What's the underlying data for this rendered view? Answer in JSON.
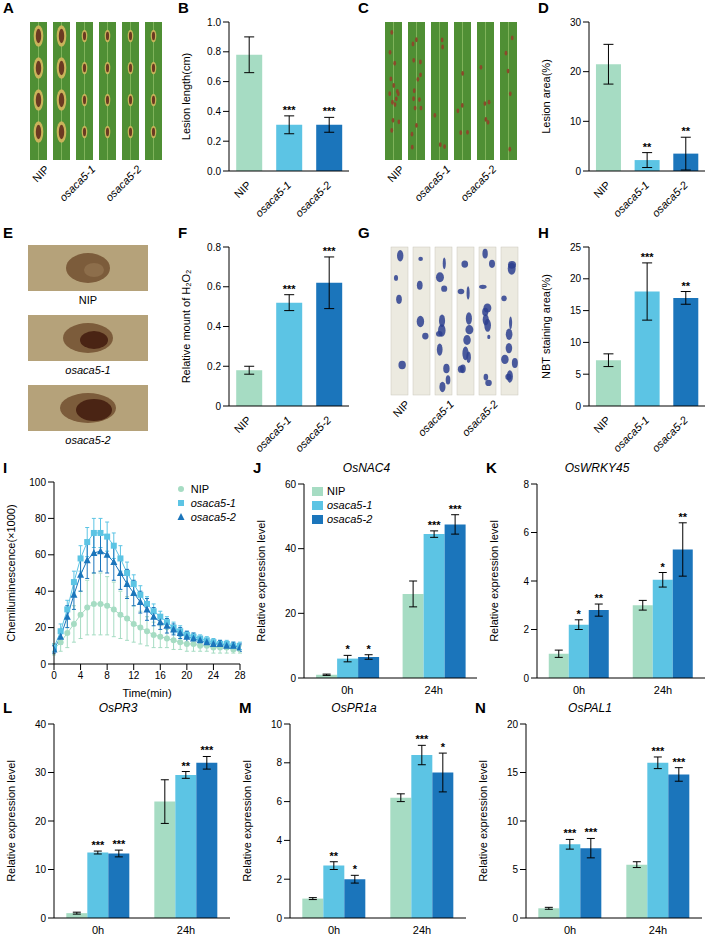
{
  "chart_data": [
    {
      "panel": "B",
      "type": "bar",
      "categories": [
        "NIP",
        "osaca5-1",
        "osaca5-2"
      ],
      "values": [
        0.78,
        0.31,
        0.31
      ],
      "errors": [
        0.12,
        0.06,
        0.05
      ],
      "annotations": [
        null,
        "***",
        "***"
      ],
      "colors": [
        "#a6dcc3",
        "#5cc4e4",
        "#1b75bb"
      ],
      "ylabel": "Lesion length(cm)",
      "ylim": [
        0,
        1
      ],
      "yticks": [
        {
          "value": 0,
          "label": "0.0"
        },
        0.2,
        0.4,
        0.6,
        0.8,
        {
          "value": 1,
          "label": "1.0"
        }
      ]
    },
    {
      "panel": "D",
      "type": "bar",
      "categories": [
        "NIP",
        "osaca5-1",
        "osaca5-2"
      ],
      "values": [
        21.5,
        2.2,
        3.5
      ],
      "errors": [
        4,
        1.5,
        3.3
      ],
      "annotations": [
        null,
        "**",
        "**"
      ],
      "colors": [
        "#a6dcc3",
        "#5cc4e4",
        "#1b75bb"
      ],
      "ylabel": "Lesion area(%)",
      "ylim": [
        0,
        30
      ],
      "yticks": [
        0,
        10,
        20,
        30
      ]
    },
    {
      "panel": "F",
      "type": "bar",
      "categories": [
        "NIP",
        "osaca5-1",
        "osaca5-2"
      ],
      "values": [
        0.18,
        0.52,
        0.62
      ],
      "errors": [
        0.02,
        0.04,
        0.13
      ],
      "annotations": [
        null,
        "***",
        "***"
      ],
      "colors": [
        "#a6dcc3",
        "#5cc4e4",
        "#1b75bb"
      ],
      "ylabel": "Relative mount of H₂O₂",
      "ylim": [
        0,
        0.8
      ],
      "yticks": [
        0,
        0.2,
        0.4,
        0.6,
        0.8
      ]
    },
    {
      "panel": "H",
      "type": "bar",
      "categories": [
        "NIP",
        "osaca5-1",
        "osaca5-2"
      ],
      "values": [
        7.2,
        18,
        17
      ],
      "errors": [
        1,
        4.5,
        1
      ],
      "annotations": [
        null,
        "***",
        "**"
      ],
      "colors": [
        "#a6dcc3",
        "#5cc4e4",
        "#1b75bb"
      ],
      "ylabel": "NBT staining area(%)",
      "ylim": [
        0,
        25
      ],
      "yticks": [
        0,
        5,
        10,
        15,
        20,
        25
      ]
    },
    {
      "panel": "I",
      "type": "line",
      "xlabel": "Time(min)",
      "ylabel": "Chemiluminescence(×1000)",
      "legend": "top-right",
      "xlim": [
        0,
        28
      ],
      "xticks": [
        0,
        4,
        8,
        12,
        16,
        20,
        24,
        28
      ],
      "ylim": [
        0,
        100
      ],
      "yticks": [
        0,
        20,
        40,
        60,
        80,
        100
      ],
      "x": [
        0,
        1,
        2,
        3,
        4,
        5,
        6,
        7,
        8,
        9,
        10,
        11,
        12,
        13,
        14,
        15,
        16,
        17,
        18,
        19,
        20,
        21,
        22,
        23,
        24,
        25,
        26,
        27,
        28
      ],
      "series": [
        {
          "name": "NIP",
          "color": "#a6dcc3",
          "marker": "circle",
          "values": [
            8,
            12,
            17,
            22,
            27,
            31,
            33,
            33,
            32,
            30,
            27,
            25,
            22,
            20,
            18,
            16,
            15,
            14,
            13,
            12,
            11,
            11,
            10,
            10,
            9,
            9,
            9,
            8,
            8
          ],
          "errors": [
            3,
            5,
            8,
            10,
            13,
            15,
            17,
            17,
            16,
            15,
            13,
            12,
            10,
            9,
            8,
            7,
            6,
            5,
            5,
            4,
            4,
            4,
            3,
            3,
            3,
            3,
            3,
            2,
            2
          ]
        },
        {
          "name": "osaca5-1",
          "color": "#5cc4e4",
          "marker": "square",
          "values": [
            9,
            18,
            30,
            45,
            58,
            67,
            72,
            72,
            70,
            65,
            58,
            50,
            44,
            38,
            33,
            29,
            26,
            23,
            20,
            18,
            16,
            15,
            14,
            13,
            12,
            11,
            11,
            10,
            10
          ],
          "errors": [
            2,
            4,
            5,
            6,
            7,
            8,
            8,
            8,
            8,
            7,
            7,
            6,
            5,
            5,
            4,
            4,
            3,
            3,
            3,
            3,
            2,
            2,
            2,
            2,
            2,
            2,
            2,
            2,
            2
          ]
        },
        {
          "name": "osaca5-2",
          "color": "#1b75bb",
          "marker": "triangle",
          "values": [
            8,
            15,
            26,
            38,
            49,
            57,
            61,
            62,
            60,
            56,
            50,
            44,
            39,
            34,
            30,
            26,
            23,
            21,
            19,
            17,
            15,
            14,
            13,
            12,
            11,
            11,
            10,
            10,
            9
          ],
          "errors": [
            2,
            4,
            6,
            8,
            9,
            10,
            11,
            11,
            10,
            10,
            9,
            8,
            7,
            6,
            6,
            5,
            4,
            4,
            3,
            3,
            3,
            3,
            2,
            2,
            2,
            2,
            2,
            2,
            2
          ]
        }
      ]
    },
    {
      "panel": "J",
      "type": "bar",
      "title": "OsNAC4",
      "legend": "top-left",
      "categories": [
        "0h",
        "24h"
      ],
      "ylabel": "Relative expression level",
      "ylim": [
        0,
        60
      ],
      "yticks": [
        0,
        20,
        40,
        60
      ],
      "series": [
        {
          "name": "NIP",
          "color": "#a6dcc3",
          "values": [
            1,
            26
          ],
          "errors": [
            0.2,
            4
          ],
          "annotations": [
            null,
            null
          ]
        },
        {
          "name": "osaca5-1",
          "color": "#5cc4e4",
          "values": [
            6,
            44.5
          ],
          "errors": [
            1,
            1
          ],
          "annotations": [
            "*",
            "***"
          ]
        },
        {
          "name": "osaca5-2",
          "color": "#1b75bb",
          "values": [
            6.5,
            47.5
          ],
          "errors": [
            0.7,
            3
          ],
          "annotations": [
            "*",
            "***"
          ]
        }
      ]
    },
    {
      "panel": "K",
      "type": "bar",
      "title": "OsWRKY45",
      "categories": [
        "0h",
        "24h"
      ],
      "ylabel": "Relative expression level",
      "ylim": [
        0,
        8
      ],
      "yticks": [
        0,
        2,
        4,
        6,
        8
      ],
      "series": [
        {
          "name": "NIP",
          "color": "#a6dcc3",
          "values": [
            1,
            3
          ],
          "errors": [
            0.15,
            0.2
          ],
          "annotations": [
            null,
            null
          ]
        },
        {
          "name": "osaca5-1",
          "color": "#5cc4e4",
          "values": [
            2.2,
            4.05
          ],
          "errors": [
            0.2,
            0.3
          ],
          "annotations": [
            "*",
            "*"
          ]
        },
        {
          "name": "osaca5-2",
          "color": "#1b75bb",
          "values": [
            2.8,
            5.3
          ],
          "errors": [
            0.25,
            1.1
          ],
          "annotations": [
            "**",
            "**"
          ]
        }
      ]
    },
    {
      "panel": "L",
      "type": "bar",
      "title": "OsPR3",
      "categories": [
        "0h",
        "24h"
      ],
      "ylabel": "Relative expression level",
      "ylim": [
        0,
        40
      ],
      "yticks": [
        0,
        10,
        20,
        30,
        40
      ],
      "series": [
        {
          "name": "NIP",
          "color": "#a6dcc3",
          "values": [
            1,
            24
          ],
          "errors": [
            0.2,
            4.5
          ],
          "annotations": [
            null,
            null
          ]
        },
        {
          "name": "osaca5-1",
          "color": "#5cc4e4",
          "values": [
            13.5,
            29.5
          ],
          "errors": [
            0.3,
            0.7
          ],
          "annotations": [
            "***",
            "**"
          ]
        },
        {
          "name": "osaca5-2",
          "color": "#1b75bb",
          "values": [
            13.3,
            32
          ],
          "errors": [
            0.7,
            1.3
          ],
          "annotations": [
            "***",
            "***"
          ]
        }
      ]
    },
    {
      "panel": "M",
      "type": "bar",
      "title": "OsPR1a",
      "categories": [
        "0h",
        "24h"
      ],
      "ylabel": "Relative expression level",
      "ylim": [
        0,
        10
      ],
      "yticks": [
        0,
        2,
        4,
        6,
        8,
        10
      ],
      "series": [
        {
          "name": "NIP",
          "color": "#a6dcc3",
          "values": [
            1,
            6.2
          ],
          "errors": [
            0.05,
            0.2
          ],
          "annotations": [
            null,
            null
          ]
        },
        {
          "name": "osaca5-1",
          "color": "#5cc4e4",
          "values": [
            2.7,
            8.4
          ],
          "errors": [
            0.2,
            0.5
          ],
          "annotations": [
            "**",
            "***"
          ]
        },
        {
          "name": "osaca5-2",
          "color": "#1b75bb",
          "values": [
            2,
            7.5
          ],
          "errors": [
            0.2,
            1
          ],
          "annotations": [
            "*",
            "*"
          ]
        }
      ]
    },
    {
      "panel": "N",
      "type": "bar",
      "title": "OsPAL1",
      "categories": [
        "0h",
        "24h"
      ],
      "ylabel": "Relative expression level",
      "ylim": [
        0,
        20
      ],
      "yticks": [
        0,
        5,
        10,
        15,
        20
      ],
      "series": [
        {
          "name": "NIP",
          "color": "#a6dcc3",
          "values": [
            1,
            5.5
          ],
          "errors": [
            0.1,
            0.3
          ],
          "annotations": [
            null,
            null
          ]
        },
        {
          "name": "osaca5-1",
          "color": "#5cc4e4",
          "values": [
            7.6,
            16
          ],
          "errors": [
            0.5,
            0.6
          ],
          "annotations": [
            "***",
            "***"
          ]
        },
        {
          "name": "osaca5-2",
          "color": "#1b75bb",
          "values": [
            7.2,
            14.8
          ],
          "errors": [
            1,
            0.7
          ],
          "annotations": [
            "***",
            "***"
          ]
        }
      ]
    }
  ],
  "images": [
    {
      "panel": "A",
      "labels": [
        "NIP",
        "osaca5-1",
        "osaca5-2"
      ]
    },
    {
      "panel": "C",
      "labels": [
        "NIP",
        "osaca5-1",
        "osaca5-2"
      ]
    },
    {
      "panel": "E",
      "labels": [
        "NIP",
        "osaca5-1",
        "osaca5-2"
      ]
    },
    {
      "panel": "G",
      "labels": [
        "NIP",
        "osaca5-1",
        "osaca5-2"
      ]
    }
  ]
}
